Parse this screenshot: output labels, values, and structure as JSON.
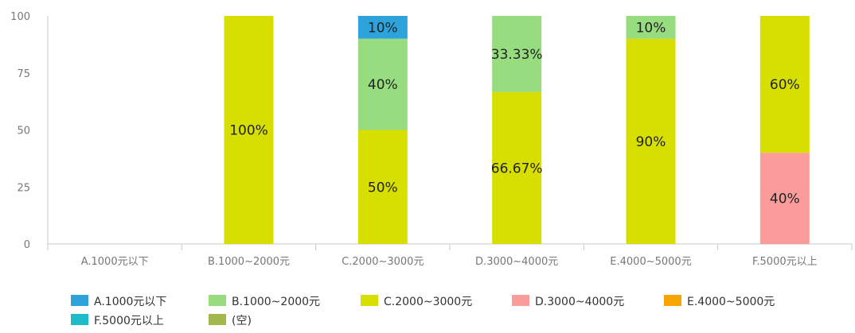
{
  "chart_data": {
    "type": "bar",
    "stacked": true,
    "ylim": [
      0,
      100
    ],
    "yticks": [
      0,
      25,
      50,
      75,
      100
    ],
    "categories": [
      "A.1000元以下",
      "B.1000~2000元",
      "C.2000~3000元",
      "D.3000~4000元",
      "E.4000~5000元",
      "F.5000元以上"
    ],
    "series": [
      {
        "name": "A.1000元以下",
        "color": "#2ea3db",
        "values": [
          0,
          0,
          10,
          0,
          0,
          0
        ],
        "labels": [
          "",
          "",
          "10%",
          "",
          "",
          ""
        ]
      },
      {
        "name": "B.1000~2000元",
        "color": "#97dc7e",
        "values": [
          0,
          0,
          40,
          33.33,
          10,
          0
        ],
        "labels": [
          "",
          "",
          "40%",
          "33.33%",
          "10%",
          ""
        ]
      },
      {
        "name": "C.2000~3000元",
        "color": "#d7df00",
        "values": [
          0,
          100,
          50,
          66.67,
          90,
          60
        ],
        "labels": [
          "",
          "100%",
          "50%",
          "66.67%",
          "90%",
          "60%"
        ]
      },
      {
        "name": "D.3000~4000元",
        "color": "#fb9c9a",
        "values": [
          0,
          0,
          0,
          0,
          0,
          40
        ],
        "labels": [
          "",
          "",
          "",
          "",
          "",
          "40%"
        ]
      },
      {
        "name": "E.4000~5000元",
        "color": "#f7a400",
        "values": [
          0,
          0,
          0,
          0,
          0,
          0
        ],
        "labels": [
          "",
          "",
          "",
          "",
          "",
          ""
        ]
      },
      {
        "name": "F.5000元以上",
        "color": "#1ebbc9",
        "values": [
          0,
          0,
          0,
          0,
          0,
          0
        ],
        "labels": [
          "",
          "",
          "",
          "",
          "",
          ""
        ]
      },
      {
        "name": "(空)",
        "color": "#a2b84a",
        "values": [
          0,
          0,
          0,
          0,
          0,
          0
        ],
        "labels": [
          "",
          "",
          "",
          "",
          "",
          ""
        ]
      }
    ],
    "grid": false,
    "legend": "bottom"
  }
}
